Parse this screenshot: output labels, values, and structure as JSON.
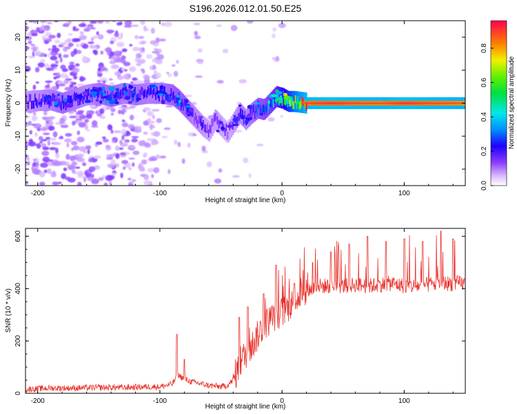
{
  "title": "S196.2026.012.01.50.E25",
  "chart_data": [
    {
      "type": "heatmap",
      "xlabel": "Height of straight line (km)",
      "ylabel": "Frequency (Hz)",
      "xlim": [
        -210,
        150
      ],
      "ylim": [
        -25,
        25
      ],
      "x_ticks": [
        -200,
        -100,
        0,
        100
      ],
      "x_tick_labels": [
        "-200",
        "-100",
        "0",
        "100"
      ],
      "y_ticks": [
        -20,
        -10,
        0,
        10,
        20
      ],
      "y_tick_labels": [
        "-20",
        "-10",
        "0",
        "10",
        "20"
      ],
      "colorbar": {
        "label": "Normalized spectral amplitude",
        "range": [
          0.0,
          0.96
        ],
        "ticks": [
          0.0,
          0.2,
          0.4,
          0.6,
          0.8
        ],
        "tick_labels": [
          "0.0",
          "0.2",
          "0.4",
          "0.6",
          "0.8"
        ]
      },
      "ridge": [
        {
          "x": -210,
          "f": 0.5,
          "a": 0.18
        },
        {
          "x": -190,
          "f": 1.0,
          "a": 0.22
        },
        {
          "x": -180,
          "f": 0.0,
          "a": 0.25
        },
        {
          "x": -160,
          "f": 2.5,
          "a": 0.2
        },
        {
          "x": -150,
          "f": 3.0,
          "a": 0.24
        },
        {
          "x": -140,
          "f": 2.0,
          "a": 0.26
        },
        {
          "x": -130,
          "f": 3.0,
          "a": 0.22
        },
        {
          "x": -120,
          "f": 2.5,
          "a": 0.24
        },
        {
          "x": -110,
          "f": 3.0,
          "a": 0.22
        },
        {
          "x": -100,
          "f": 3.0,
          "a": 0.24
        },
        {
          "x": -90,
          "f": 2.5,
          "a": 0.26
        },
        {
          "x": -85,
          "f": 1.0,
          "a": 0.28
        },
        {
          "x": -80,
          "f": -1.0,
          "a": 0.26
        },
        {
          "x": -75,
          "f": -3.0,
          "a": 0.22
        },
        {
          "x": -70,
          "f": -5.0,
          "a": 0.2
        },
        {
          "x": -65,
          "f": -7.0,
          "a": 0.18
        },
        {
          "x": -60,
          "f": -8.5,
          "a": 0.16
        },
        {
          "x": -55,
          "f": -5.0,
          "a": 0.18
        },
        {
          "x": -50,
          "f": -7.0,
          "a": 0.16
        },
        {
          "x": -45,
          "f": -9.0,
          "a": 0.15
        },
        {
          "x": -40,
          "f": -6.0,
          "a": 0.18
        },
        {
          "x": -35,
          "f": -3.0,
          "a": 0.22
        },
        {
          "x": -30,
          "f": -5.0,
          "a": 0.2
        },
        {
          "x": -25,
          "f": -3.0,
          "a": 0.24
        },
        {
          "x": -20,
          "f": -1.5,
          "a": 0.28
        },
        {
          "x": -15,
          "f": -2.0,
          "a": 0.3
        },
        {
          "x": -10,
          "f": 0.0,
          "a": 0.34
        },
        {
          "x": -5,
          "f": 2.0,
          "a": 0.4
        },
        {
          "x": 0,
          "f": 1.5,
          "a": 0.5
        },
        {
          "x": 5,
          "f": 0.5,
          "a": 0.62
        },
        {
          "x": 10,
          "f": 0.5,
          "a": 0.72
        },
        {
          "x": 20,
          "f": 0.0,
          "a": 0.86
        },
        {
          "x": 40,
          "f": 0.0,
          "a": 0.88
        },
        {
          "x": 60,
          "f": 0.0,
          "a": 0.86
        },
        {
          "x": 80,
          "f": 0.0,
          "a": 0.85
        },
        {
          "x": 100,
          "f": 0.0,
          "a": 0.88
        },
        {
          "x": 120,
          "f": 0.0,
          "a": 0.86
        },
        {
          "x": 150,
          "f": 0.0,
          "a": 0.84
        }
      ]
    },
    {
      "type": "line",
      "xlabel": "Height of straight line (km)",
      "ylabel": "SNR (10 * v/v)",
      "xlim": [
        -210,
        150
      ],
      "ylim": [
        0,
        630
      ],
      "x_ticks": [
        -200,
        -100,
        0,
        100
      ],
      "x_tick_labels": [
        "-200",
        "-100",
        "0",
        "100"
      ],
      "y_ticks": [
        0,
        200,
        400,
        600
      ],
      "y_tick_labels": [
        "0",
        "200",
        "400",
        "600"
      ],
      "series": [
        {
          "name": "SNR",
          "color": "#e8302a",
          "x": [
            -210,
            -190,
            -170,
            -150,
            -130,
            -110,
            -100,
            -90,
            -85,
            -80,
            -75,
            -70,
            -60,
            -50,
            -45,
            -40,
            -35,
            -30,
            -25,
            -20,
            -15,
            -10,
            -5,
            0,
            5,
            10,
            15,
            20,
            25,
            30,
            40,
            50,
            60,
            70,
            80,
            90,
            100,
            110,
            120,
            130,
            140,
            150
          ],
          "y": [
            15,
            20,
            20,
            22,
            22,
            25,
            25,
            35,
            70,
            55,
            45,
            40,
            30,
            25,
            30,
            50,
            110,
            150,
            180,
            220,
            260,
            280,
            300,
            310,
            330,
            350,
            380,
            390,
            400,
            410,
            410,
            410,
            415,
            410,
            415,
            420,
            410,
            410,
            415,
            420,
            420,
            420
          ]
        }
      ],
      "spikes": [
        {
          "x": -86,
          "y": 225
        },
        {
          "x": -80,
          "y": 130
        },
        {
          "x": -35,
          "y": 290
        },
        {
          "x": -28,
          "y": 330
        },
        {
          "x": -15,
          "y": 380
        },
        {
          "x": -5,
          "y": 490
        },
        {
          "x": 10,
          "y": 420
        },
        {
          "x": 25,
          "y": 500
        },
        {
          "x": 40,
          "y": 540
        },
        {
          "x": 55,
          "y": 570
        },
        {
          "x": 70,
          "y": 600
        },
        {
          "x": 85,
          "y": 580
        },
        {
          "x": 100,
          "y": 590
        },
        {
          "x": 115,
          "y": 580
        },
        {
          "x": 130,
          "y": 620
        },
        {
          "x": 140,
          "y": 590
        }
      ]
    }
  ]
}
